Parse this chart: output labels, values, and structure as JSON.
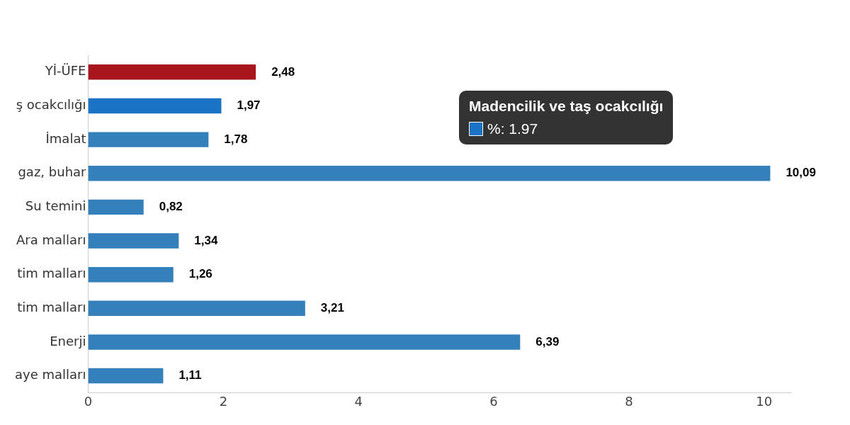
{
  "chart_data": {
    "type": "bar",
    "orientation": "horizontal",
    "categories": [
      "Yİ-ÜFE",
      "ş ocakcılığı",
      "İmalat",
      "gaz, buhar",
      "Su temini",
      "Ara malları",
      "tim malları",
      "tim malları",
      "Enerji",
      "aye malları"
    ],
    "values": [
      2.48,
      1.97,
      1.78,
      10.09,
      0.82,
      1.34,
      1.26,
      3.21,
      6.39,
      1.11
    ],
    "colors": [
      "#a8151c",
      "#1a73c4",
      "#3380bb",
      "#3380bb",
      "#3380bb",
      "#3380bb",
      "#3380bb",
      "#3380bb",
      "#3380bb",
      "#3380bb"
    ],
    "value_labels": [
      "2,48",
      "1,97",
      "1,78",
      "10,09",
      "0,82",
      "1,34",
      "1,26",
      "3,21",
      "6,39",
      "1,11"
    ],
    "xlim": [
      0,
      10.4
    ],
    "xticks": [
      0,
      2,
      4,
      6,
      8,
      10
    ],
    "grid": false,
    "legend": false,
    "annotations": [
      "Madencilik ve taş ocakcılığı",
      "%: 1.97"
    ]
  }
}
